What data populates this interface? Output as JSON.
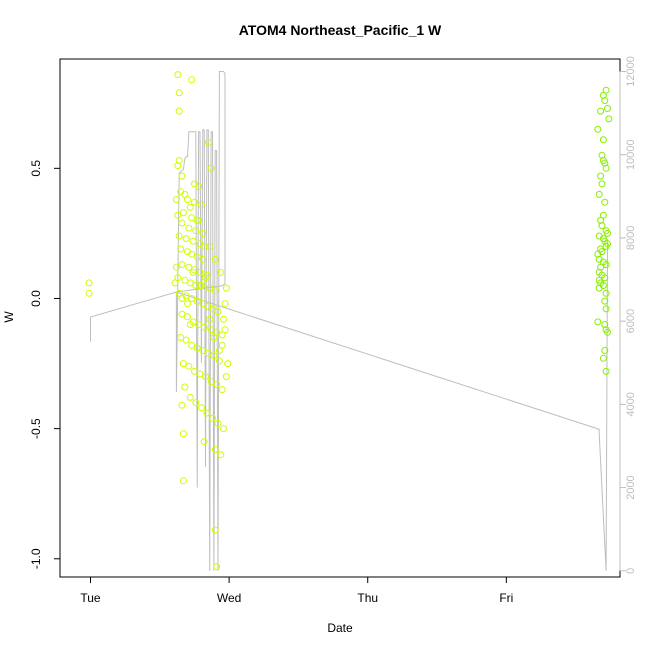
{
  "chart_data": {
    "type": "scatter",
    "title": "ATOM4 Northeast_Pacific_1 W",
    "xlabel": "Date",
    "ylabel": "W",
    "x_ticks": [
      "Tue",
      "Wed",
      "Thu",
      "Fri"
    ],
    "y_ticks": [
      "-1.0",
      "-0.5",
      "0.0",
      "0.5"
    ],
    "y_tick_values": [
      -1.0,
      -0.5,
      0.0,
      0.5
    ],
    "right_ticks": [
      "0",
      "2000",
      "4000",
      "6000",
      "8000",
      "10000",
      "12000"
    ],
    "right_tick_values": [
      0,
      2000,
      4000,
      6000,
      8000,
      10000,
      12000
    ],
    "x_range_days": [
      -0.22,
      3.82
    ],
    "ylim": [
      -1.07,
      0.92
    ],
    "right_ylim": [
      -150,
      12300
    ],
    "grid": false,
    "legend": "none",
    "colors": {
      "points_early": "#ccff00",
      "points_late": "#88ee00",
      "depth_line": "#bebebe",
      "axis": "#000000",
      "right_axis": "#bebebe"
    },
    "points": [
      [
        -0.01,
        0.06
      ],
      [
        -0.01,
        0.02
      ],
      [
        0.63,
        0.86
      ],
      [
        0.73,
        0.84
      ],
      [
        0.64,
        0.79
      ],
      [
        0.64,
        0.72
      ],
      [
        0.64,
        0.53
      ],
      [
        0.63,
        0.51
      ],
      [
        0.66,
        0.47
      ],
      [
        0.75,
        0.44
      ],
      [
        0.78,
        0.43
      ],
      [
        0.65,
        0.41
      ],
      [
        0.7,
        0.38
      ],
      [
        0.75,
        0.37
      ],
      [
        0.8,
        0.36
      ],
      [
        0.67,
        0.33
      ],
      [
        0.73,
        0.31
      ],
      [
        0.63,
        0.32
      ],
      [
        0.78,
        0.3
      ],
      [
        0.66,
        0.29
      ],
      [
        0.71,
        0.27
      ],
      [
        0.76,
        0.26
      ],
      [
        0.64,
        0.24
      ],
      [
        0.69,
        0.23
      ],
      [
        0.74,
        0.22
      ],
      [
        0.79,
        0.21
      ],
      [
        0.82,
        0.2
      ],
      [
        0.65,
        0.19
      ],
      [
        0.7,
        0.18
      ],
      [
        0.73,
        0.17
      ],
      [
        0.77,
        0.16
      ],
      [
        0.81,
        0.15
      ],
      [
        0.66,
        0.13
      ],
      [
        0.71,
        0.12
      ],
      [
        0.75,
        0.11
      ],
      [
        0.79,
        0.1
      ],
      [
        0.84,
        0.09
      ],
      [
        0.63,
        0.08
      ],
      [
        0.68,
        0.07
      ],
      [
        0.72,
        0.06
      ],
      [
        0.76,
        0.05
      ],
      [
        0.8,
        0.05
      ],
      [
        0.86,
        0.04
      ],
      [
        0.9,
        0.03
      ],
      [
        0.64,
        0.02
      ],
      [
        0.69,
        0.01
      ],
      [
        0.73,
        0.0
      ],
      [
        0.77,
        -0.01
      ],
      [
        0.81,
        -0.02
      ],
      [
        0.85,
        -0.03
      ],
      [
        0.88,
        -0.04
      ],
      [
        0.92,
        -0.05
      ],
      [
        0.66,
        -0.06
      ],
      [
        0.7,
        -0.07
      ],
      [
        0.74,
        -0.09
      ],
      [
        0.78,
        -0.1
      ],
      [
        0.82,
        -0.11
      ],
      [
        0.87,
        -0.12
      ],
      [
        0.91,
        -0.13
      ],
      [
        0.95,
        -0.14
      ],
      [
        0.65,
        -0.15
      ],
      [
        0.69,
        -0.16
      ],
      [
        0.73,
        -0.18
      ],
      [
        0.77,
        -0.19
      ],
      [
        0.81,
        -0.2
      ],
      [
        0.85,
        -0.21
      ],
      [
        0.89,
        -0.22
      ],
      [
        0.93,
        -0.24
      ],
      [
        0.67,
        -0.25
      ],
      [
        0.71,
        -0.26
      ],
      [
        0.75,
        -0.28
      ],
      [
        0.79,
        -0.29
      ],
      [
        0.83,
        -0.3
      ],
      [
        0.87,
        -0.32
      ],
      [
        0.91,
        -0.33
      ],
      [
        0.95,
        -0.35
      ],
      [
        0.68,
        -0.34
      ],
      [
        0.72,
        -0.38
      ],
      [
        0.76,
        -0.4
      ],
      [
        0.8,
        -0.42
      ],
      [
        0.84,
        -0.44
      ],
      [
        0.88,
        -0.46
      ],
      [
        0.92,
        -0.48
      ],
      [
        0.96,
        -0.5
      ],
      [
        0.66,
        -0.41
      ],
      [
        0.67,
        -0.52
      ],
      [
        0.82,
        -0.55
      ],
      [
        0.9,
        -0.58
      ],
      [
        0.94,
        -0.6
      ],
      [
        0.67,
        -0.7
      ],
      [
        0.9,
        -0.89
      ],
      [
        0.91,
        -1.03
      ],
      [
        0.68,
        0.4
      ],
      [
        0.72,
        0.35
      ],
      [
        0.77,
        0.3
      ],
      [
        0.81,
        0.25
      ],
      [
        0.86,
        0.2
      ],
      [
        0.9,
        0.15
      ],
      [
        0.94,
        0.1
      ],
      [
        0.98,
        0.04
      ],
      [
        0.97,
        -0.02
      ],
      [
        0.96,
        -0.08
      ],
      [
        0.95,
        -0.18
      ],
      [
        0.98,
        -0.3
      ],
      [
        0.85,
        0.6
      ],
      [
        0.87,
        0.5
      ],
      [
        0.62,
        0.38
      ],
      [
        0.62,
        0.12
      ],
      [
        0.61,
        0.06
      ],
      [
        0.66,
        0.0
      ],
      [
        0.7,
        -0.02
      ],
      [
        0.72,
        -0.1
      ],
      [
        0.74,
        0.1
      ],
      [
        0.79,
        0.05
      ],
      [
        0.83,
        0.08
      ],
      [
        0.86,
        -0.08
      ],
      [
        0.89,
        -0.15
      ],
      [
        0.93,
        -0.2
      ],
      [
        0.97,
        -0.12
      ],
      [
        0.99,
        -0.25
      ],
      [
        3.66,
        0.65
      ],
      [
        3.68,
        0.72
      ],
      [
        3.7,
        0.78
      ],
      [
        3.72,
        0.8
      ],
      [
        3.71,
        0.76
      ],
      [
        3.73,
        0.73
      ],
      [
        3.74,
        0.69
      ],
      [
        3.7,
        0.61
      ],
      [
        3.69,
        0.55
      ],
      [
        3.7,
        0.53
      ],
      [
        3.71,
        0.52
      ],
      [
        3.72,
        0.5
      ],
      [
        3.68,
        0.47
      ],
      [
        3.69,
        0.44
      ],
      [
        3.67,
        0.4
      ],
      [
        3.71,
        0.37
      ],
      [
        3.7,
        0.32
      ],
      [
        3.68,
        0.3
      ],
      [
        3.69,
        0.28
      ],
      [
        3.72,
        0.26
      ],
      [
        3.73,
        0.25
      ],
      [
        3.67,
        0.24
      ],
      [
        3.7,
        0.23
      ],
      [
        3.71,
        0.22
      ],
      [
        3.73,
        0.21
      ],
      [
        3.72,
        0.2
      ],
      [
        3.68,
        0.19
      ],
      [
        3.69,
        0.18
      ],
      [
        3.66,
        0.17
      ],
      [
        3.67,
        0.15
      ],
      [
        3.7,
        0.14
      ],
      [
        3.72,
        0.13
      ],
      [
        3.68,
        0.12
      ],
      [
        3.67,
        0.1
      ],
      [
        3.69,
        0.09
      ],
      [
        3.71,
        0.08
      ],
      [
        3.67,
        0.07
      ],
      [
        3.68,
        0.06
      ],
      [
        3.7,
        0.05
      ],
      [
        3.67,
        0.04
      ],
      [
        3.72,
        0.02
      ],
      [
        3.71,
        -0.01
      ],
      [
        3.72,
        -0.04
      ],
      [
        3.66,
        -0.09
      ],
      [
        3.71,
        -0.1
      ],
      [
        3.72,
        -0.12
      ],
      [
        3.73,
        -0.13
      ],
      [
        3.71,
        -0.2
      ],
      [
        3.7,
        -0.23
      ],
      [
        3.72,
        -0.28
      ]
    ],
    "depth_line": [
      [
        0.0,
        5500
      ],
      [
        0.0,
        6100
      ],
      [
        0.62,
        6700
      ],
      [
        0.62,
        4300
      ],
      [
        0.64,
        9550
      ],
      [
        0.67,
        9650
      ],
      [
        0.68,
        9900
      ],
      [
        0.69,
        9950
      ],
      [
        0.7,
        9950
      ],
      [
        0.71,
        10550
      ],
      [
        0.76,
        10550
      ],
      [
        0.77,
        2000
      ],
      [
        0.78,
        10550
      ],
      [
        0.79,
        10550
      ],
      [
        0.8,
        5000
      ],
      [
        0.81,
        10600
      ],
      [
        0.82,
        10600
      ],
      [
        0.83,
        2500
      ],
      [
        0.84,
        10600
      ],
      [
        0.85,
        10600
      ],
      [
        0.86,
        0
      ],
      [
        0.87,
        10550
      ],
      [
        0.88,
        10550
      ],
      [
        0.89,
        0
      ],
      [
        0.9,
        10100
      ],
      [
        0.91,
        10100
      ],
      [
        0.92,
        0
      ],
      [
        0.93,
        12000
      ],
      [
        0.95,
        12000
      ],
      [
        0.96,
        12000
      ],
      [
        0.97,
        11950
      ],
      [
        0.97,
        6900
      ],
      [
        0.95,
        6850
      ],
      [
        0.62,
        6700
      ],
      [
        3.67,
        3400
      ],
      [
        3.67,
        3300
      ],
      [
        3.72,
        0
      ],
      [
        3.73,
        7900
      ]
    ]
  }
}
